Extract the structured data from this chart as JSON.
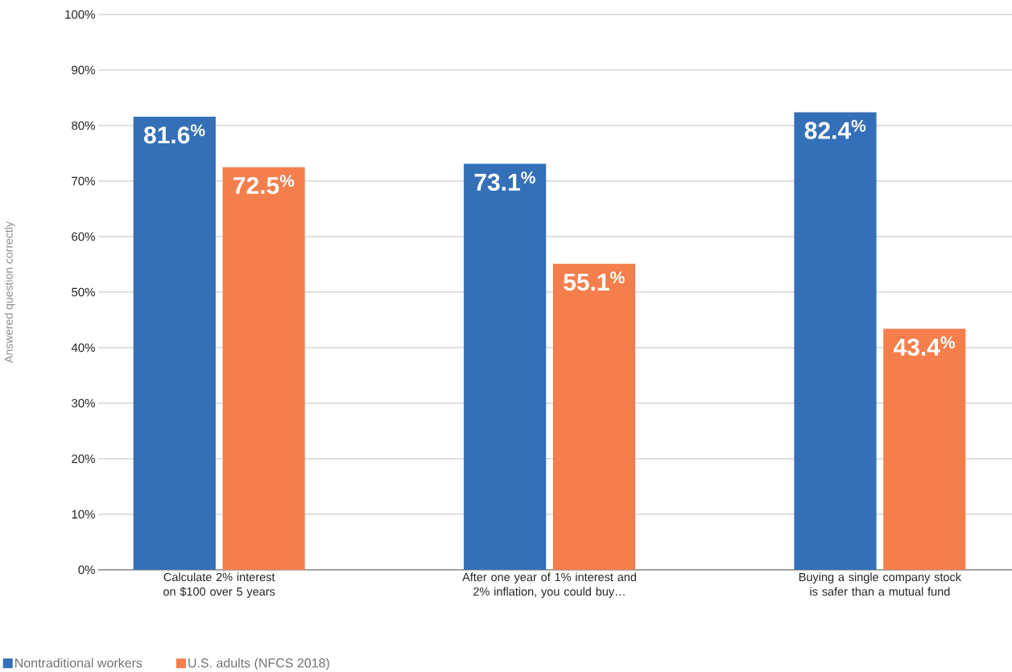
{
  "chart_data": {
    "type": "bar",
    "ylabel": "Answered question correctly",
    "categories": [
      "Calculate 2% interest on $100 over 5 years",
      "After one year of 1% interest and 2% inflation, you could buy…",
      "Buying a single company stock is safer than a mutual fund"
    ],
    "series": [
      {
        "name": "Nontraditional workers",
        "color": "#3470b8",
        "values": [
          81.6,
          73.1,
          82.4
        ],
        "value_labels": [
          "81.6$^{%}$",
          "73.1$^{%}$",
          "82.4$^{%}$"
        ]
      },
      {
        "name": "U.S. adults (NFCS 2018)",
        "color": "#f47f4d",
        "values": [
          72.5,
          55.1,
          43.4
        ],
        "value_labels": [
          "72.5$^{%}$",
          "55.1$^{%}$",
          "43.4$^{%}$"
        ]
      }
    ],
    "ylim": [
      0,
      100
    ],
    "yticks": [
      {
        "value": 0,
        "label": "0%"
      },
      {
        "value": 10,
        "label": "10%"
      },
      {
        "value": 20,
        "label": "20%"
      },
      {
        "value": 30,
        "label": "30%"
      },
      {
        "value": 40,
        "label": "40%"
      },
      {
        "value": 50,
        "label": "50%"
      },
      {
        "value": 60,
        "label": "60%"
      },
      {
        "value": 70,
        "label": "70%"
      },
      {
        "value": 80,
        "label": "80%"
      },
      {
        "value": 90,
        "label": "90%"
      },
      {
        "value": 100,
        "label": "100%"
      }
    ],
    "grid": "y",
    "legend": "bottom left"
  }
}
